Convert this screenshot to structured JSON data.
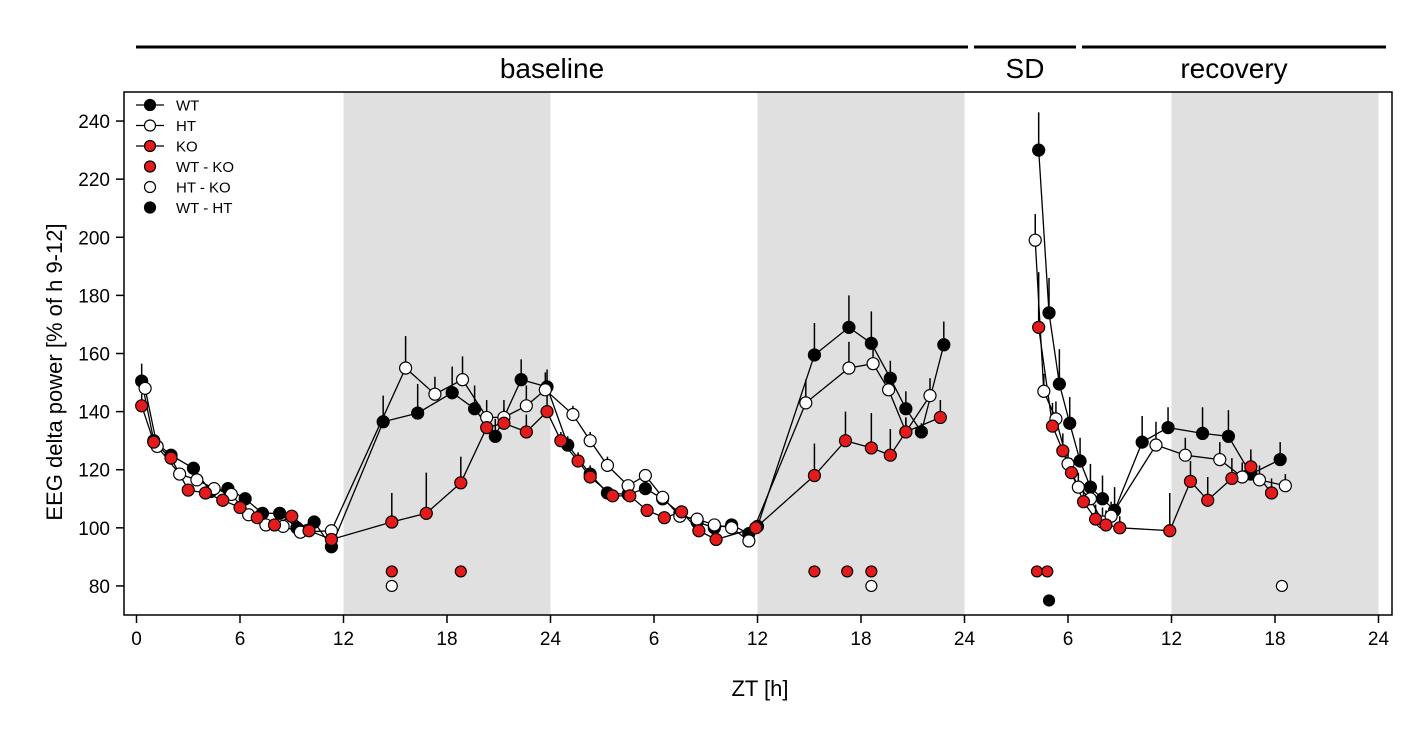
{
  "chart_data": {
    "type": "scatter",
    "ylabel": "EEG delta power [% of h 9-12]",
    "xlabel": "ZT [h]",
    "ylim": [
      70,
      250
    ],
    "xlim": [
      -1,
      73
    ],
    "yticks": [
      80,
      100,
      120,
      140,
      160,
      180,
      200,
      220,
      240
    ],
    "xticks": [
      {
        "x": 0,
        "label": "0"
      },
      {
        "x": 6,
        "label": "6"
      },
      {
        "x": 12,
        "label": "12"
      },
      {
        "x": 18,
        "label": "18"
      },
      {
        "x": 24,
        "label": "24"
      },
      {
        "x": 30,
        "label": "6"
      },
      {
        "x": 36,
        "label": "12"
      },
      {
        "x": 42,
        "label": "18"
      },
      {
        "x": 48,
        "label": "24"
      },
      {
        "x": 54,
        "label": "6"
      },
      {
        "x": 60,
        "label": "12"
      },
      {
        "x": 66,
        "label": "18"
      },
      {
        "x": 72,
        "label": "24"
      }
    ],
    "dark_periods": [
      [
        12,
        24
      ],
      [
        36,
        48
      ],
      [
        60,
        72
      ]
    ],
    "phases": [
      {
        "label": "baseline",
        "start": 0,
        "end": 48
      },
      {
        "label": "SD",
        "start": 48,
        "end": 54
      },
      {
        "label": "recovery",
        "start": 54,
        "end": 72
      }
    ],
    "legend_position": "top-left",
    "legend": [
      {
        "label": "WT",
        "marker": "black",
        "line": true
      },
      {
        "label": "HT",
        "marker": "white",
        "line": true
      },
      {
        "label": "KO",
        "marker": "red",
        "line": true
      },
      {
        "label": "WT - KO",
        "marker": "red",
        "line": false
      },
      {
        "label": "HT - KO",
        "marker": "white",
        "line": false
      },
      {
        "label": "WT - HT",
        "marker": "black",
        "line": false
      }
    ],
    "colors": {
      "WT": "#000000",
      "HT": "#ffffff",
      "KO": "#e51b1b",
      "shading": "#e0e0e0"
    },
    "series": [
      {
        "name": "WT",
        "marker": "black",
        "segments": [
          [
            [
              0.3,
              150.5,
              6
            ],
            [
              1.0,
              130,
              2
            ],
            [
              2.0,
              125,
              2
            ],
            [
              3.3,
              120.5,
              2
            ],
            [
              4.3,
              112.5,
              2
            ],
            [
              5.3,
              113.5,
              2
            ],
            [
              6.3,
              110,
              2
            ],
            [
              7.3,
              105,
              2
            ],
            [
              8.3,
              105,
              2
            ],
            [
              9.3,
              100,
              2
            ],
            [
              10.3,
              102,
              2
            ],
            [
              11.3,
              93.5,
              2
            ],
            [
              14.3,
              136.5,
              9
            ],
            [
              16.3,
              139.5,
              10
            ],
            [
              18.3,
              146.5,
              9
            ],
            [
              19.6,
              141,
              8
            ],
            [
              20.8,
              131.5,
              6
            ],
            [
              22.3,
              151,
              7
            ],
            [
              23.8,
              148.5,
              6
            ],
            [
              25.0,
              128.5,
              3
            ],
            [
              26.3,
              118.5,
              3
            ],
            [
              27.3,
              112,
              2
            ],
            [
              28.5,
              111.5,
              2
            ],
            [
              29.5,
              113.5,
              2
            ],
            [
              30.5,
              110,
              2
            ],
            [
              31.5,
              105,
              2
            ],
            [
              32.5,
              102,
              2
            ],
            [
              33.5,
              100,
              2
            ],
            [
              34.5,
              101,
              2
            ],
            [
              35.5,
              98,
              2
            ],
            [
              36.0,
              100.5,
              2
            ],
            [
              39.3,
              159.5,
              11
            ],
            [
              41.3,
              169,
              11
            ],
            [
              42.6,
              163.5,
              11
            ],
            [
              43.7,
              151.5,
              6
            ],
            [
              44.6,
              141,
              6
            ],
            [
              45.5,
              133,
              3
            ],
            [
              46.8,
              163,
              8
            ]
          ],
          [
            [
              52.3,
              230,
              13
            ],
            [
              52.9,
              174,
              12
            ],
            [
              53.5,
              149.5,
              12
            ],
            [
              54.1,
              136,
              9
            ],
            [
              54.7,
              123,
              8
            ],
            [
              55.3,
              114,
              8
            ],
            [
              56.0,
              110,
              8
            ],
            [
              56.7,
              106,
              8
            ],
            [
              58.3,
              129.5,
              9
            ],
            [
              59.8,
              134.5,
              7
            ],
            [
              61.8,
              132.5,
              9
            ],
            [
              63.3,
              131.5,
              9
            ],
            [
              64.6,
              118.5,
              6
            ],
            [
              66.3,
              123.5,
              6
            ]
          ]
        ]
      },
      {
        "name": "HT",
        "marker": "white",
        "segments": [
          [
            [
              0.5,
              148,
              4
            ],
            [
              1.2,
              128,
              2
            ],
            [
              2.5,
              118.5,
              2
            ],
            [
              3.5,
              116.5,
              2
            ],
            [
              4.5,
              113.5,
              2
            ],
            [
              5.5,
              111.5,
              2
            ],
            [
              6.5,
              104.5,
              2
            ],
            [
              7.5,
              101,
              2
            ],
            [
              8.5,
              100.5,
              2
            ],
            [
              9.5,
              98.5,
              2
            ],
            [
              11.3,
              99,
              2
            ],
            [
              15.6,
              155,
              11
            ],
            [
              17.3,
              146,
              6
            ],
            [
              18.9,
              151,
              8
            ],
            [
              20.3,
              138,
              6
            ],
            [
              21.3,
              138,
              6
            ],
            [
              22.6,
              142,
              7
            ],
            [
              23.7,
              147.5,
              6
            ],
            [
              25.3,
              139,
              3
            ],
            [
              26.3,
              130,
              3
            ],
            [
              27.3,
              121.5,
              3
            ],
            [
              28.5,
              114.5,
              2
            ],
            [
              29.5,
              118,
              2
            ],
            [
              30.5,
              110.5,
              2
            ],
            [
              31.5,
              104,
              2
            ],
            [
              32.5,
              103,
              2
            ],
            [
              33.5,
              101,
              2
            ],
            [
              34.5,
              100,
              2
            ],
            [
              35.5,
              95.5,
              2
            ],
            [
              38.8,
              143,
              8
            ],
            [
              41.3,
              155,
              9
            ],
            [
              42.7,
              156.5,
              8
            ],
            [
              43.6,
              147.5,
              6
            ],
            [
              44.6,
              133,
              5
            ],
            [
              46.0,
              145.5,
              6
            ]
          ],
          [
            [
              52.1,
              199,
              9
            ],
            [
              52.6,
              147,
              6
            ],
            [
              53.3,
              137.5,
              6
            ],
            [
              54.0,
              122,
              5
            ],
            [
              54.6,
              114,
              5
            ],
            [
              55.3,
              110,
              5
            ],
            [
              56.0,
              102,
              5
            ],
            [
              56.5,
              104,
              5
            ],
            [
              59.1,
              128.5,
              8
            ],
            [
              60.8,
              125,
              6
            ],
            [
              62.8,
              123.5,
              6
            ],
            [
              64.1,
              117.5,
              5
            ],
            [
              65.1,
              116.5,
              5
            ],
            [
              66.6,
              114.5,
              4
            ]
          ]
        ]
      },
      {
        "name": "KO",
        "marker": "red",
        "segments": [
          [
            [
              0.3,
              142,
              4
            ],
            [
              1.0,
              129.5,
              2
            ],
            [
              2.0,
              124,
              2
            ],
            [
              3.0,
              113,
              2
            ],
            [
              4.0,
              112,
              2
            ],
            [
              5.0,
              109.5,
              2
            ],
            [
              6.0,
              107,
              2
            ],
            [
              7.0,
              103.5,
              2
            ],
            [
              8.0,
              101,
              2
            ],
            [
              9.0,
              104,
              2
            ],
            [
              10.0,
              99,
              2
            ],
            [
              11.3,
              96,
              2
            ],
            [
              14.8,
              102,
              10
            ],
            [
              16.8,
              105,
              14
            ],
            [
              18.8,
              115.5,
              9
            ],
            [
              20.3,
              134.5,
              5
            ],
            [
              21.3,
              136,
              5
            ],
            [
              22.6,
              133,
              6
            ],
            [
              23.8,
              140,
              6
            ],
            [
              24.6,
              130,
              3
            ],
            [
              25.6,
              123,
              3
            ],
            [
              26.3,
              117.5,
              2
            ],
            [
              27.6,
              111,
              2
            ],
            [
              28.6,
              111,
              2
            ],
            [
              29.6,
              106,
              2
            ],
            [
              30.6,
              103.5,
              2
            ],
            [
              31.6,
              105.5,
              2
            ],
            [
              32.6,
              99,
              2
            ],
            [
              33.6,
              96,
              2
            ],
            [
              35.9,
              100,
              2
            ],
            [
              39.3,
              118,
              11
            ],
            [
              41.1,
              130,
              10
            ],
            [
              42.6,
              127.5,
              12
            ],
            [
              43.7,
              125,
              9
            ],
            [
              44.6,
              133,
              5
            ],
            [
              46.6,
              138,
              6
            ]
          ],
          [
            [
              52.3,
              169,
              19
            ],
            [
              53.1,
              135,
              8
            ],
            [
              53.7,
              126.5,
              6
            ],
            [
              54.2,
              119,
              5
            ],
            [
              54.9,
              109,
              5
            ],
            [
              55.6,
              103,
              5
            ],
            [
              56.2,
              101,
              5
            ],
            [
              57.0,
              100,
              4
            ],
            [
              59.9,
              99,
              13
            ],
            [
              61.1,
              116,
              7
            ],
            [
              62.1,
              109.5,
              8
            ],
            [
              63.5,
              117,
              7
            ],
            [
              64.6,
              121,
              6
            ],
            [
              65.8,
              112,
              5
            ]
          ]
        ]
      }
    ],
    "significance_markers": [
      {
        "x": 14.8,
        "y": 85,
        "marker": "red"
      },
      {
        "x": 18.8,
        "y": 85,
        "marker": "red"
      },
      {
        "x": 14.8,
        "y": 80,
        "marker": "white"
      },
      {
        "x": 39.3,
        "y": 85,
        "marker": "red"
      },
      {
        "x": 41.2,
        "y": 85,
        "marker": "red"
      },
      {
        "x": 42.6,
        "y": 85,
        "marker": "red"
      },
      {
        "x": 42.6,
        "y": 80,
        "marker": "white"
      },
      {
        "x": 52.2,
        "y": 85,
        "marker": "red"
      },
      {
        "x": 52.8,
        "y": 85,
        "marker": "red"
      },
      {
        "x": 52.9,
        "y": 75,
        "marker": "black"
      },
      {
        "x": 66.4,
        "y": 80,
        "marker": "white"
      }
    ]
  }
}
